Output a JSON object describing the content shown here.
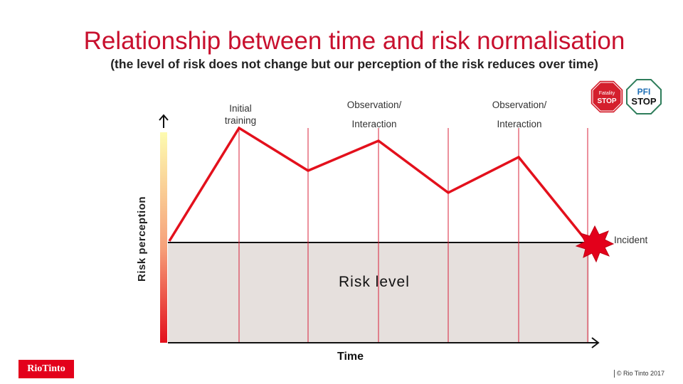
{
  "title": "Relationship between time and risk normalisation",
  "subtitle": "(the level of risk does not change but our perception of the risk reduces over time)",
  "diagram": {
    "y_axis_label": "Risk perception",
    "x_axis_label": "Time",
    "risk_level_label": "Risk level",
    "incident_label": "Incident",
    "annotations": [
      {
        "line1": "Initial",
        "line2": "training"
      },
      {
        "line1": "Observation/",
        "line2": "Interaction"
      },
      {
        "line1": "Observation/",
        "line2": "Interaction"
      }
    ],
    "colors": {
      "risk_line": "#e3101c",
      "risk_level_fill": "#e6e0dd",
      "accent": "#c8102e"
    }
  },
  "badges": {
    "fatality_stop": {
      "line1": "Fatality",
      "line2": "STOP"
    },
    "pfi_stop": {
      "line1": "PFI",
      "line2": "STOP"
    }
  },
  "logo": "RioTinto",
  "footer": "© Rio Tinto 2017"
}
